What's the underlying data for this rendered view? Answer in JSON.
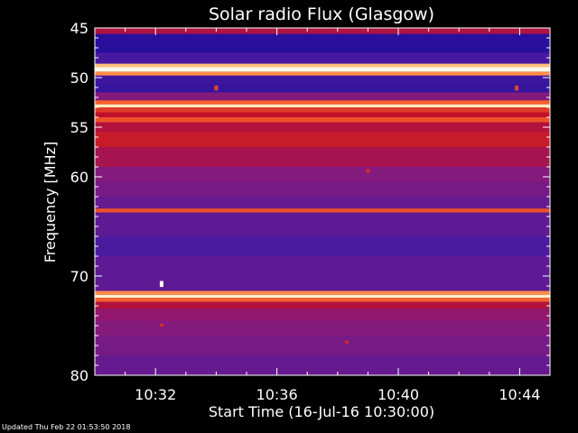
{
  "footer": {
    "updated": "Updated Thu Feb 22 01:53:50 2018"
  },
  "chart_data": {
    "type": "heatmap",
    "title": "Solar radio Flux (Glasgow)",
    "xlabel": "Start Time (16-Jul-16 10:30:00)",
    "ylabel": "Frequency [MHz]",
    "xlim_minutes": [
      0,
      15
    ],
    "ylim_mhz": [
      45,
      80
    ],
    "y_reversed": true,
    "x_ticks": [
      {
        "minutes": 2,
        "label": "10:32"
      },
      {
        "minutes": 6,
        "label": "10:36"
      },
      {
        "minutes": 10,
        "label": "10:40"
      },
      {
        "minutes": 14,
        "label": "10:44"
      }
    ],
    "y_ticks": [
      {
        "mhz": 45,
        "label": "45"
      },
      {
        "mhz": 50,
        "label": "50"
      },
      {
        "mhz": 55,
        "label": "55"
      },
      {
        "mhz": 60,
        "label": "60"
      },
      {
        "mhz": 70,
        "label": "70"
      },
      {
        "mhz": 80,
        "label": "80"
      }
    ],
    "colormap": [
      "#1a0a9a",
      "#4a1aa0",
      "#8a1a7a",
      "#c0102a",
      "#ff6a2a",
      "#ffd890",
      "#fffbe8"
    ],
    "background_level": 0.18,
    "frequency_bands": [
      {
        "f0": 45.0,
        "f1": 45.6,
        "level": 0.45
      },
      {
        "f0": 45.6,
        "f1": 47.5,
        "level": 0.05
      },
      {
        "f0": 47.5,
        "f1": 48.6,
        "level": 0.16
      },
      {
        "f0": 48.6,
        "f1": 48.95,
        "level": 0.8
      },
      {
        "f0": 48.95,
        "f1": 49.4,
        "level": 1.0
      },
      {
        "f0": 49.4,
        "f1": 49.8,
        "level": 0.72
      },
      {
        "f0": 49.8,
        "f1": 50.6,
        "level": 0.12
      },
      {
        "f0": 50.6,
        "f1": 51.5,
        "level": 0.1
      },
      {
        "f0": 51.5,
        "f1": 52.3,
        "level": 0.32
      },
      {
        "f0": 52.3,
        "f1": 52.7,
        "level": 0.65
      },
      {
        "f0": 52.7,
        "f1": 53.0,
        "level": 0.92
      },
      {
        "f0": 53.0,
        "f1": 53.5,
        "level": 0.58
      },
      {
        "f0": 53.5,
        "f1": 54.0,
        "level": 0.5
      },
      {
        "f0": 54.0,
        "f1": 54.5,
        "level": 0.62
      },
      {
        "f0": 54.5,
        "f1": 55.5,
        "level": 0.46
      },
      {
        "f0": 55.5,
        "f1": 57.0,
        "level": 0.52
      },
      {
        "f0": 57.0,
        "f1": 59.0,
        "level": 0.42
      },
      {
        "f0": 59.0,
        "f1": 60.5,
        "level": 0.32
      },
      {
        "f0": 60.5,
        "f1": 62.0,
        "level": 0.28
      },
      {
        "f0": 62.0,
        "f1": 63.2,
        "level": 0.24
      },
      {
        "f0": 63.2,
        "f1": 63.6,
        "level": 0.62
      },
      {
        "f0": 63.6,
        "f1": 66.0,
        "level": 0.22
      },
      {
        "f0": 66.0,
        "f1": 68.0,
        "level": 0.17
      },
      {
        "f0": 68.0,
        "f1": 71.5,
        "level": 0.22
      },
      {
        "f0": 71.5,
        "f1": 71.9,
        "level": 0.72
      },
      {
        "f0": 71.9,
        "f1": 72.2,
        "level": 0.95
      },
      {
        "f0": 72.2,
        "f1": 72.6,
        "level": 0.65
      },
      {
        "f0": 72.6,
        "f1": 73.3,
        "level": 0.46
      },
      {
        "f0": 73.3,
        "f1": 74.5,
        "level": 0.36
      },
      {
        "f0": 74.5,
        "f1": 76.0,
        "level": 0.32
      },
      {
        "f0": 76.0,
        "f1": 78.0,
        "level": 0.28
      },
      {
        "f0": 78.0,
        "f1": 80.0,
        "level": 0.24
      }
    ],
    "bursts": [
      {
        "minutes": 2.2,
        "f0": 70.5,
        "f1": 71.1,
        "level": 1.0
      },
      {
        "minutes": 4.0,
        "f0": 50.8,
        "f1": 51.3,
        "level": 0.6
      },
      {
        "minutes": 9.0,
        "f0": 59.2,
        "f1": 59.6,
        "level": 0.55
      },
      {
        "minutes": 13.9,
        "f0": 50.8,
        "f1": 51.3,
        "level": 0.6
      },
      {
        "minutes": 2.2,
        "f0": 74.8,
        "f1": 75.1,
        "level": 0.55
      },
      {
        "minutes": 8.3,
        "f0": 76.5,
        "f1": 76.8,
        "level": 0.55
      }
    ]
  }
}
